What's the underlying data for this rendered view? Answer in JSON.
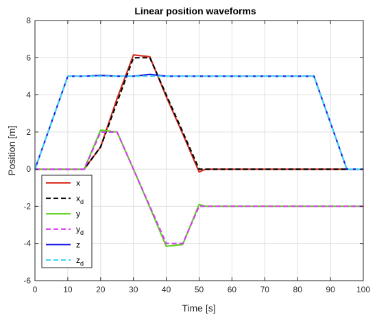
{
  "chart_data": {
    "type": "line",
    "title": "Linear position waveforms",
    "xlabel": "Time [s]",
    "ylabel": "Position [m]",
    "xlim": [
      0,
      100
    ],
    "ylim": [
      -6,
      8
    ],
    "xticks": [
      0,
      10,
      20,
      30,
      40,
      50,
      60,
      70,
      80,
      90,
      100
    ],
    "yticks": [
      -6,
      -4,
      -2,
      0,
      2,
      4,
      6,
      8
    ],
    "grid": true,
    "legend_position": "lower-left",
    "series": [
      {
        "name": "x",
        "legend_base": "x",
        "legend_sub": "",
        "color": "#d62e1f",
        "dash": "solid",
        "x": [
          0,
          15,
          20,
          25,
          30,
          35,
          40,
          45,
          50,
          52,
          100
        ],
        "y": [
          0,
          0,
          1.2,
          3.8,
          6.15,
          6.05,
          3.9,
          1.9,
          -0.15,
          0,
          0
        ]
      },
      {
        "name": "xd",
        "legend_base": "x",
        "legend_sub": "d",
        "color": "#000000",
        "dash": "dashed",
        "x": [
          0,
          15,
          20,
          25,
          30,
          35,
          40,
          45,
          50,
          100
        ],
        "y": [
          0,
          0,
          1.2,
          3.6,
          6.0,
          6.0,
          4.0,
          2.0,
          0,
          0
        ]
      },
      {
        "name": "y",
        "legend_base": "y",
        "legend_sub": "",
        "color": "#5ed01e",
        "dash": "solid",
        "x": [
          0,
          15,
          20,
          25,
          30,
          35,
          40,
          45,
          50,
          52,
          100
        ],
        "y": [
          0,
          0,
          2.1,
          2.0,
          0,
          -2.05,
          -4.15,
          -4.05,
          -1.9,
          -2.0,
          -2.0
        ]
      },
      {
        "name": "yd",
        "legend_base": "y",
        "legend_sub": "d",
        "color": "#d63cf2",
        "dash": "dashed",
        "x": [
          0,
          15,
          20,
          25,
          30,
          35,
          40,
          45,
          50,
          100
        ],
        "y": [
          0,
          0,
          2.0,
          2.0,
          0,
          -2.0,
          -4.0,
          -4.0,
          -2.0,
          -2.0
        ]
      },
      {
        "name": "z",
        "legend_base": "z",
        "legend_sub": "",
        "color": "#1a1ae6",
        "dash": "solid",
        "x": [
          0,
          10,
          15,
          20,
          25,
          30,
          35,
          40,
          50,
          60,
          70,
          80,
          85,
          95,
          100
        ],
        "y": [
          0,
          5.0,
          5.0,
          5.05,
          5.0,
          5.0,
          5.1,
          5.0,
          5.0,
          5.0,
          5.0,
          5.0,
          5.0,
          0,
          0
        ]
      },
      {
        "name": "zd",
        "legend_base": "z",
        "legend_sub": "d",
        "color": "#40d6f2",
        "dash": "dashed",
        "x": [
          0,
          10,
          85,
          95,
          100
        ],
        "y": [
          0,
          5.0,
          5.0,
          0,
          0
        ]
      }
    ]
  }
}
